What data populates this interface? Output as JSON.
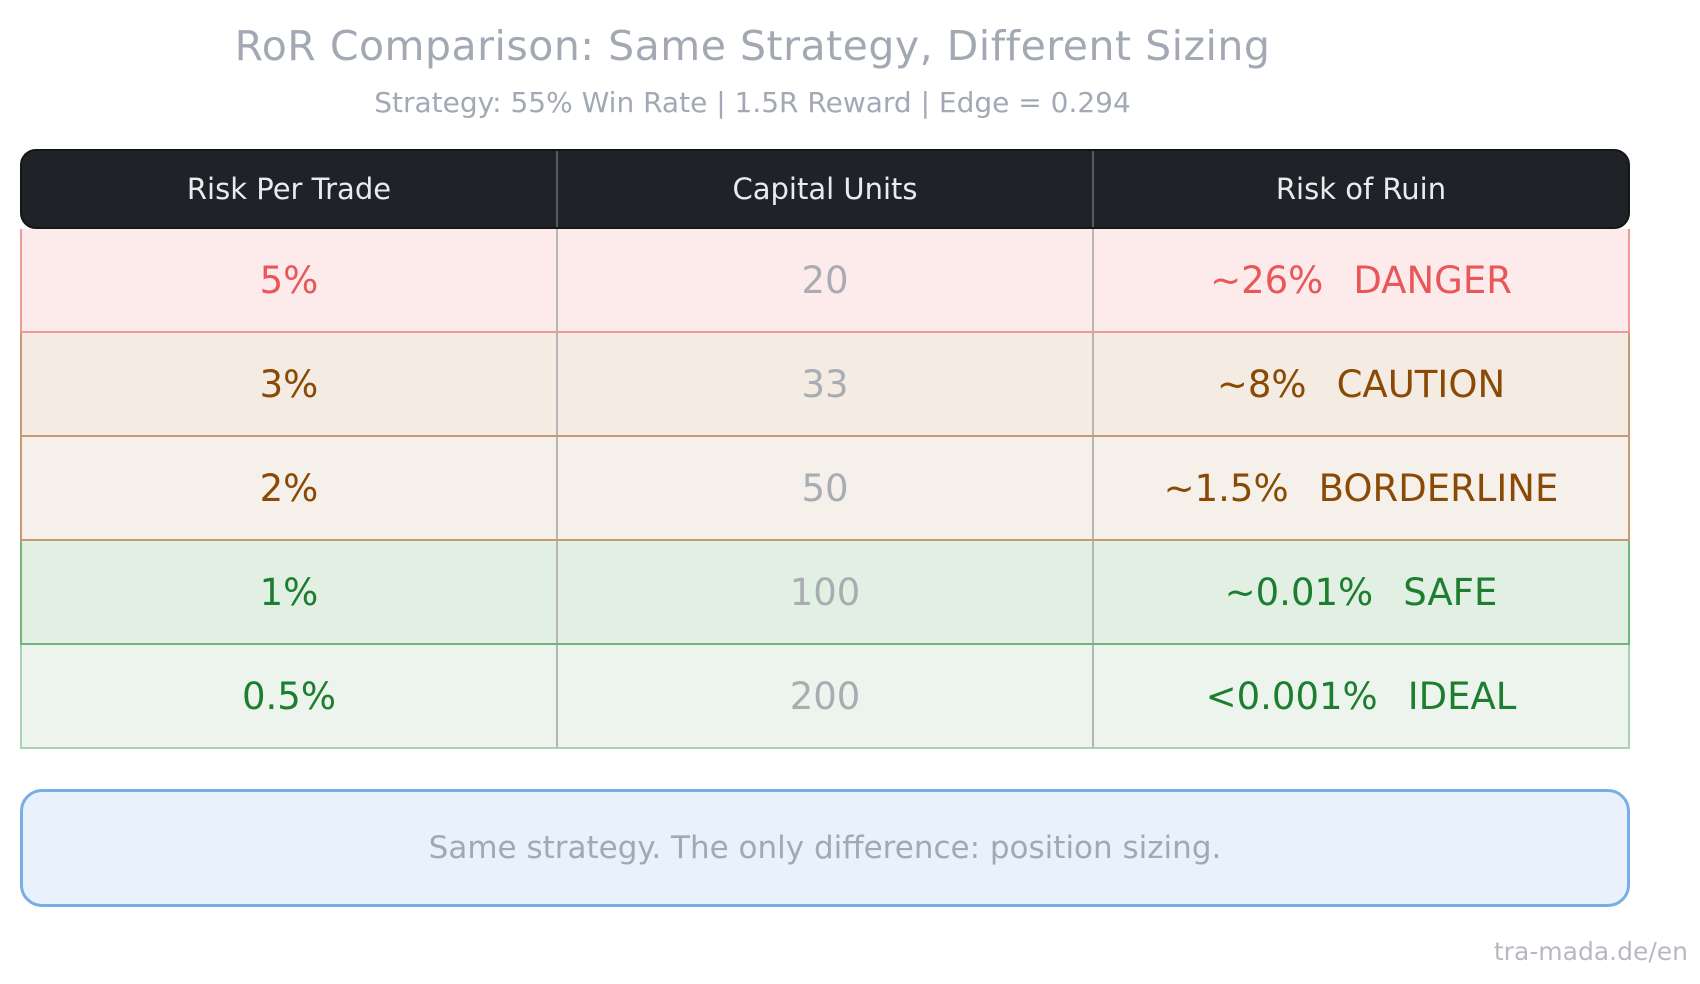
{
  "chart_data": {
    "type": "table",
    "title": "RoR Comparison: Same Strategy, Different Sizing",
    "subtitle": "Strategy: 55% Win Rate | 1.5R Reward | Edge = 0.294",
    "columns": [
      "Risk Per Trade",
      "Capital Units",
      "Risk of Ruin"
    ],
    "rows": [
      {
        "risk": "5%",
        "units": "20",
        "ror": "~26%",
        "status": "DANGER",
        "text_color": "#e8585a",
        "bg": "#fdeaea",
        "border": "#eb9c99"
      },
      {
        "risk": "3%",
        "units": "33",
        "ror": "~8%",
        "status": "CAUTION",
        "text_color": "#8a4a05",
        "bg": "#f4ebe3",
        "border": "#c79a73"
      },
      {
        "risk": "2%",
        "units": "50",
        "ror": "~1.5%",
        "status": "BORDERLINE",
        "text_color": "#8a4a05",
        "bg": "#f6f0ea",
        "border": "#c79a73"
      },
      {
        "risk": "1%",
        "units": "100",
        "ror": "~0.01%",
        "status": "SAFE",
        "text_color": "#1d7e30",
        "bg": "#e2efe3",
        "border": "#6eb77a"
      },
      {
        "risk": "0.5%",
        "units": "200",
        "ror": "<0.001%",
        "status": "IDEAL",
        "text_color": "#1d7e30",
        "bg": "#edf4ed",
        "border": "#a9d3b0"
      }
    ]
  },
  "note": "Same strategy. The only difference: position sizing.",
  "footer": "tra-mada.de/en"
}
